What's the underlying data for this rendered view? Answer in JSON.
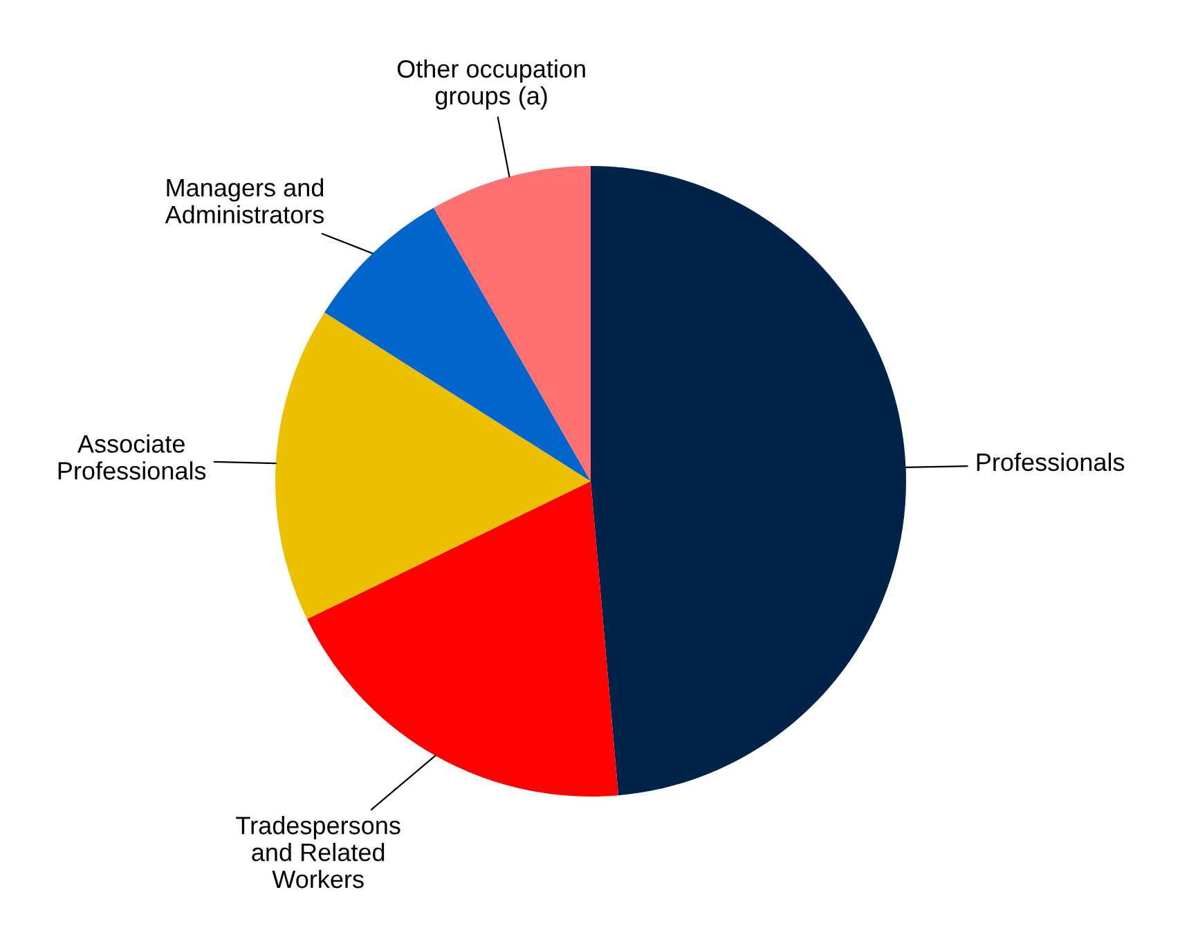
{
  "chart_data": {
    "type": "pie",
    "categories": [
      "Professionals",
      "Tradespersons\nand Related\nWorkers",
      "Associate\nProfessionals",
      "Managers and\nAdministrators",
      "Other occupation\ngroups (a)"
    ],
    "values": [
      48.6,
      19.2,
      16.2,
      7.7,
      8.3
    ],
    "colors": [
      "#002348",
      "#ff0000",
      "#ecc000",
      "#0066cc",
      "#ff7070"
    ]
  }
}
